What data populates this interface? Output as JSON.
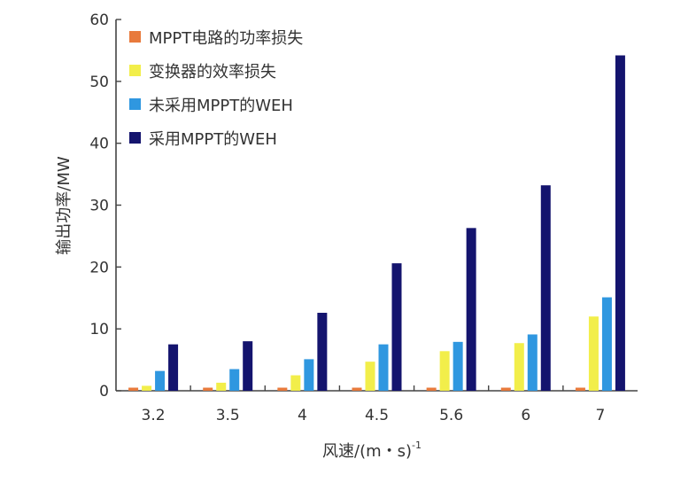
{
  "chart_data": {
    "type": "bar",
    "xlabel": "风速/(m・s)",
    "xlabel_sup": "-1",
    "ylabel": "输出功率/MW",
    "ylim": [
      0,
      60
    ],
    "yticks": [
      0,
      10,
      20,
      30,
      40,
      50,
      60
    ],
    "categories": [
      "3.2",
      "3.5",
      "4",
      "4.5",
      "5.6",
      "6",
      "7"
    ],
    "series": [
      {
        "name": "MPPT电路的功率损失",
        "color": "#E87A3C",
        "values": [
          0.5,
          0.5,
          0.5,
          0.5,
          0.5,
          0.5,
          0.5
        ]
      },
      {
        "name": "变换器的效率损失",
        "color": "#F2EE4A",
        "values": [
          0.8,
          1.3,
          2.5,
          4.7,
          6.4,
          7.7,
          12.0
        ]
      },
      {
        "name": "未采用MPPT的WEH",
        "color": "#2F97E0",
        "values": [
          3.2,
          3.5,
          5.1,
          7.5,
          7.9,
          9.1,
          15.1
        ]
      },
      {
        "name": "采用MPPT的WEH",
        "color": "#14146E",
        "values": [
          7.5,
          8.0,
          12.6,
          20.6,
          26.3,
          33.2,
          54.2
        ]
      }
    ],
    "legend_position": "top-left",
    "grid": false
  }
}
